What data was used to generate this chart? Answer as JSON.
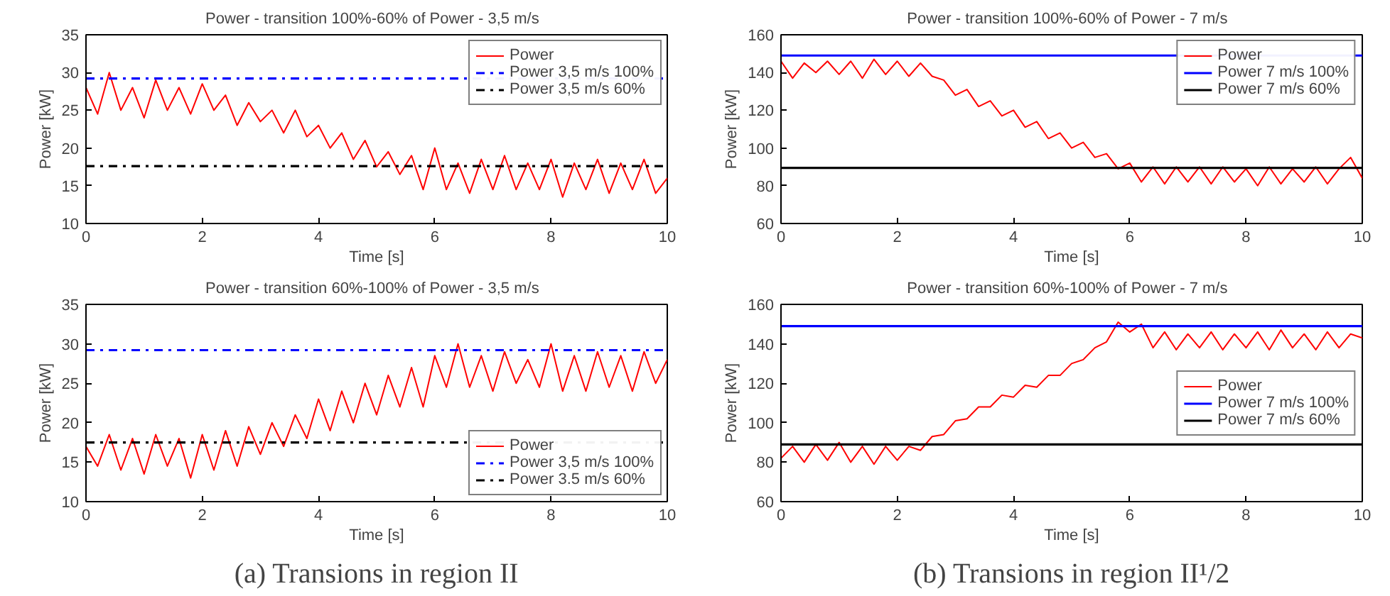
{
  "chart_data": [
    {
      "type": "line",
      "title": "Power - transition 100%-60% of Power  -  3,5 m/s",
      "xlabel": "Time [s]",
      "ylabel": "Power [kW]",
      "xlim": [
        0,
        10
      ],
      "ylim": [
        10,
        35
      ],
      "xticks": [
        0,
        2,
        4,
        6,
        8,
        10
      ],
      "yticks": [
        10,
        15,
        20,
        25,
        30,
        35
      ],
      "grid": false,
      "legend": "top right",
      "x": [
        0,
        0.2,
        0.4,
        0.6,
        0.8,
        1.0,
        1.2,
        1.4,
        1.6,
        1.8,
        2.0,
        2.2,
        2.4,
        2.6,
        2.8,
        3.0,
        3.2,
        3.4,
        3.6,
        3.8,
        4.0,
        4.2,
        4.4,
        4.6,
        4.8,
        5.0,
        5.2,
        5.4,
        5.6,
        5.8,
        6.0,
        6.2,
        6.4,
        6.6,
        6.8,
        7.0,
        7.2,
        7.4,
        7.6,
        7.8,
        8.0,
        8.2,
        8.4,
        8.6,
        8.8,
        9.0,
        9.2,
        9.4,
        9.6,
        9.8,
        10.0
      ],
      "series": [
        {
          "name": "Power",
          "color": "#ff0000",
          "values": [
            28,
            24.5,
            30,
            25,
            28,
            24,
            29,
            25,
            28,
            24.5,
            28.5,
            25,
            27,
            23,
            26,
            23.5,
            25,
            22,
            25,
            21.5,
            23,
            20,
            22,
            18.5,
            21,
            17.5,
            19.5,
            16.5,
            19,
            14.5,
            20,
            14.5,
            18,
            14,
            18.5,
            14.5,
            19,
            14.5,
            18,
            14.5,
            18.5,
            13.5,
            18,
            14.5,
            18.5,
            14,
            18,
            14.5,
            18.5,
            14,
            16
          ]
        }
      ],
      "ref_lines": [
        {
          "axis": "y",
          "value": 29.2,
          "label": "Power 3,5 m/s 100%",
          "color": "#0000ff",
          "line_style": "dashdot"
        },
        {
          "axis": "y",
          "value": 17.6,
          "label": "Power 3,5 m/s 60%",
          "color": "#000000",
          "line_style": "dashdot"
        }
      ]
    },
    {
      "type": "line",
      "title": "Power - transition 60%-100% of Power  -  3,5 m/s",
      "xlabel": "Time [s]",
      "ylabel": "Power [kW]",
      "xlim": [
        0,
        10
      ],
      "ylim": [
        10,
        35
      ],
      "xticks": [
        0,
        2,
        4,
        6,
        8,
        10
      ],
      "yticks": [
        10,
        15,
        20,
        25,
        30,
        35
      ],
      "grid": false,
      "legend": "bottom right",
      "annotations": [
        "(a) Transions in region II"
      ],
      "x": [
        0,
        0.2,
        0.4,
        0.6,
        0.8,
        1.0,
        1.2,
        1.4,
        1.6,
        1.8,
        2.0,
        2.2,
        2.4,
        2.6,
        2.8,
        3.0,
        3.2,
        3.4,
        3.6,
        3.8,
        4.0,
        4.2,
        4.4,
        4.6,
        4.8,
        5.0,
        5.2,
        5.4,
        5.6,
        5.8,
        6.0,
        6.2,
        6.4,
        6.6,
        6.8,
        7.0,
        7.2,
        7.4,
        7.6,
        7.8,
        8.0,
        8.2,
        8.4,
        8.6,
        8.8,
        9.0,
        9.2,
        9.4,
        9.6,
        9.8,
        10.0
      ],
      "series": [
        {
          "name": "Power",
          "color": "#ff0000",
          "values": [
            17,
            14.5,
            18.5,
            14,
            18,
            13.5,
            18.5,
            14.5,
            18,
            13,
            18.5,
            14,
            19,
            14.5,
            19.5,
            16,
            20,
            17,
            21,
            18,
            23,
            19,
            24,
            20,
            25,
            21,
            26,
            22,
            27,
            22,
            28.5,
            24.5,
            30,
            24.5,
            28.5,
            24,
            29,
            25,
            28,
            24.5,
            30,
            24,
            28.5,
            24,
            29,
            24.5,
            28.5,
            24,
            29,
            25,
            28
          ]
        }
      ],
      "ref_lines": [
        {
          "axis": "y",
          "value": 29.2,
          "label": "Power 3,5 m/s 100%",
          "color": "#0000ff",
          "line_style": "dashdot"
        },
        {
          "axis": "y",
          "value": 17.5,
          "label": "Power 3.5 m/s 60%",
          "color": "#000000",
          "line_style": "dashdot"
        }
      ]
    },
    {
      "type": "line",
      "title": "Power - transition 100%-60% of Power  -  7 m/s",
      "xlabel": "Time [s]",
      "ylabel": "Power [kW]",
      "xlim": [
        0,
        10
      ],
      "ylim": [
        60,
        160
      ],
      "xticks": [
        0,
        2,
        4,
        6,
        8,
        10
      ],
      "yticks": [
        60,
        80,
        100,
        120,
        140,
        160
      ],
      "grid": false,
      "legend": "top right",
      "x": [
        0,
        0.2,
        0.4,
        0.6,
        0.8,
        1.0,
        1.2,
        1.4,
        1.6,
        1.8,
        2.0,
        2.2,
        2.4,
        2.6,
        2.8,
        3.0,
        3.2,
        3.4,
        3.6,
        3.8,
        4.0,
        4.2,
        4.4,
        4.6,
        4.8,
        5.0,
        5.2,
        5.4,
        5.6,
        5.8,
        6.0,
        6.2,
        6.4,
        6.6,
        6.8,
        7.0,
        7.2,
        7.4,
        7.6,
        7.8,
        8.0,
        8.2,
        8.4,
        8.6,
        8.8,
        9.0,
        9.2,
        9.4,
        9.6,
        9.8,
        10.0
      ],
      "series": [
        {
          "name": "Power",
          "color": "#ff0000",
          "values": [
            146,
            137,
            145,
            140,
            146,
            139,
            146,
            137,
            147,
            139,
            146,
            138,
            145,
            138,
            136,
            128,
            131,
            122,
            125,
            117,
            120,
            111,
            114,
            105,
            108,
            100,
            103,
            95,
            97,
            89,
            92,
            82,
            90,
            81,
            90,
            82,
            90,
            81,
            90,
            82,
            89,
            80,
            90,
            81,
            89,
            82,
            90,
            81,
            89,
            95,
            84
          ]
        }
      ],
      "ref_lines": [
        {
          "axis": "y",
          "value": 149,
          "label": "Power 7 m/s 100%",
          "color": "#0000ff",
          "line_style": "solid"
        },
        {
          "axis": "y",
          "value": 89.5,
          "label": "Power 7 m/s 60%",
          "color": "#000000",
          "line_style": "solid"
        }
      ]
    },
    {
      "type": "line",
      "title": "Power - transition 60%-100% of Power  -  7 m/s",
      "xlabel": "Time [s]",
      "ylabel": "Power [kW]",
      "xlim": [
        0,
        10
      ],
      "ylim": [
        60,
        160
      ],
      "xticks": [
        0,
        2,
        4,
        6,
        8,
        10
      ],
      "yticks": [
        60,
        80,
        100,
        120,
        140,
        160
      ],
      "grid": false,
      "legend": "right",
      "annotations": [
        "(b) Transions in region II¹/2"
      ],
      "x": [
        0,
        0.2,
        0.4,
        0.6,
        0.8,
        1.0,
        1.2,
        1.4,
        1.6,
        1.8,
        2.0,
        2.2,
        2.4,
        2.6,
        2.8,
        3.0,
        3.2,
        3.4,
        3.6,
        3.8,
        4.0,
        4.2,
        4.4,
        4.6,
        4.8,
        5.0,
        5.2,
        5.4,
        5.6,
        5.8,
        6.0,
        6.2,
        6.4,
        6.6,
        6.8,
        7.0,
        7.2,
        7.4,
        7.6,
        7.8,
        8.0,
        8.2,
        8.4,
        8.6,
        8.8,
        9.0,
        9.2,
        9.4,
        9.6,
        9.8,
        10.0
      ],
      "series": [
        {
          "name": "Power",
          "color": "#ff0000",
          "values": [
            82,
            88,
            80,
            89,
            81,
            90,
            80,
            88,
            79,
            88,
            81,
            88,
            86,
            93,
            94,
            101,
            102,
            108,
            108,
            114,
            113,
            119,
            118,
            124,
            124,
            130,
            132,
            138,
            141,
            151,
            146,
            150,
            138,
            146,
            137,
            145,
            138,
            146,
            137,
            145,
            138,
            146,
            137,
            147,
            138,
            145,
            137,
            146,
            138,
            145,
            143
          ]
        }
      ],
      "ref_lines": [
        {
          "axis": "y",
          "value": 149,
          "label": "Power 7 m/s 100%",
          "color": "#0000ff",
          "line_style": "solid"
        },
        {
          "axis": "y",
          "value": 89,
          "label": "Power 7 m/s 60%",
          "color": "#000000",
          "line_style": "solid"
        }
      ]
    }
  ]
}
